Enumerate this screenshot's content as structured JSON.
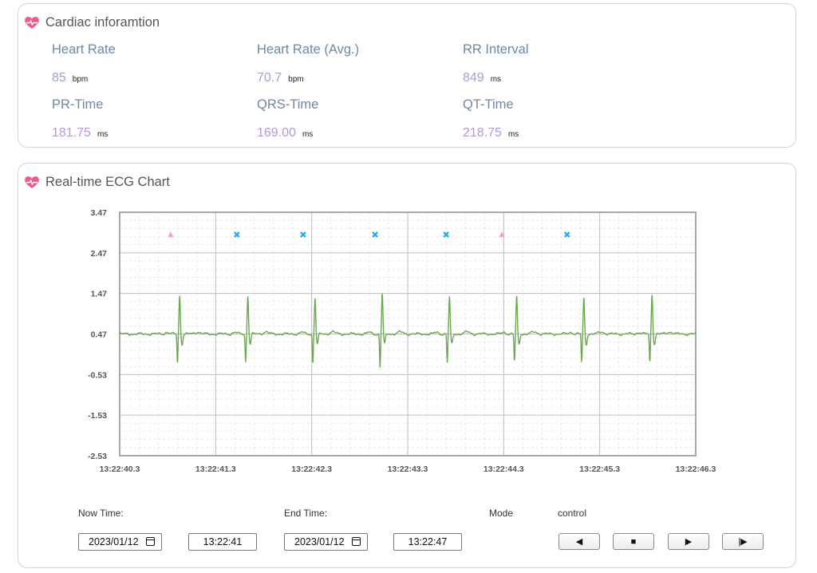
{
  "cardiac": {
    "title": "Cardiac inforamtion",
    "metrics": [
      {
        "label": "Heart Rate",
        "value": "85",
        "unit": "bpm"
      },
      {
        "label": "Heart Rate (Avg.)",
        "value": "70.7",
        "unit": "bpm"
      },
      {
        "label": "RR Interval",
        "value": "849",
        "unit": "ms"
      },
      {
        "label": "PR-Time",
        "value": "181.75",
        "unit": "ms"
      },
      {
        "label": "QRS-Time",
        "value": "169.00",
        "unit": "ms"
      },
      {
        "label": "QT-Time",
        "value": "218.75",
        "unit": "ms"
      }
    ]
  },
  "ecg": {
    "title": "Real-time ECG Chart"
  },
  "controls": {
    "now_time_label": "Now Time:",
    "now_date": "2023/01/12",
    "now_time": "13:22:41",
    "end_time_label": "End Time:",
    "end_date": "2023/01/12",
    "end_time": "13:22:47",
    "mode_label": "Mode",
    "control_label": "control",
    "buttons": [
      {
        "icon": "rewind-icon",
        "glyph": "◀"
      },
      {
        "icon": "stop-icon",
        "glyph": "■"
      },
      {
        "icon": "play-icon",
        "glyph": "▶"
      },
      {
        "icon": "step-forward-icon",
        "glyph": "|▶"
      }
    ]
  },
  "colors": {
    "heart": "#ef5d8a",
    "trace": "#6aa84f",
    "marker_triangle": "#f4a5ab",
    "marker_cross": "#1eaaf1",
    "label_blue": "#6f87a6",
    "value_purple": "#b497d6"
  },
  "chart_data": {
    "type": "line",
    "title": "",
    "xlabel": "",
    "ylabel": "",
    "ylim": [
      -2.53,
      3.47
    ],
    "yticks": [
      "3.47",
      "2.47",
      "1.47",
      "0.47",
      "-0.53",
      "-1.53",
      "-2.53"
    ],
    "xlim": [
      "13:22:40.3",
      "13:22:46.3"
    ],
    "xticks": [
      "13:22:40.3",
      "13:22:41.3",
      "13:22:42.3",
      "13:22:43.3",
      "13:22:44.3",
      "13:22:45.3",
      "13:22:46.3"
    ],
    "grid": true,
    "baseline": 0.47,
    "beats": [
      {
        "t": 0.61,
        "peak": 1.42,
        "trough": -0.25
      },
      {
        "t": 1.32,
        "peak": 1.42,
        "trough": -0.22
      },
      {
        "t": 2.02,
        "peak": 1.37,
        "trough": -0.27
      },
      {
        "t": 2.72,
        "peak": 1.47,
        "trough": -0.35
      },
      {
        "t": 3.42,
        "peak": 1.38,
        "trough": -0.23
      },
      {
        "t": 4.12,
        "peak": 1.4,
        "trough": -0.23
      },
      {
        "t": 4.82,
        "peak": 1.35,
        "trough": -0.23
      },
      {
        "t": 5.53,
        "peak": 1.47,
        "trough": -0.25
      }
    ],
    "markers": [
      {
        "type": "triangle",
        "t": 0.53,
        "y": 2.92
      },
      {
        "type": "cross",
        "t": 1.22,
        "y": 2.92
      },
      {
        "type": "cross",
        "t": 1.91,
        "y": 2.92
      },
      {
        "type": "cross",
        "t": 2.66,
        "y": 2.92
      },
      {
        "type": "cross",
        "t": 3.4,
        "y": 2.92
      },
      {
        "type": "triangle",
        "t": 3.98,
        "y": 2.92
      },
      {
        "type": "cross",
        "t": 4.66,
        "y": 2.92
      }
    ]
  }
}
